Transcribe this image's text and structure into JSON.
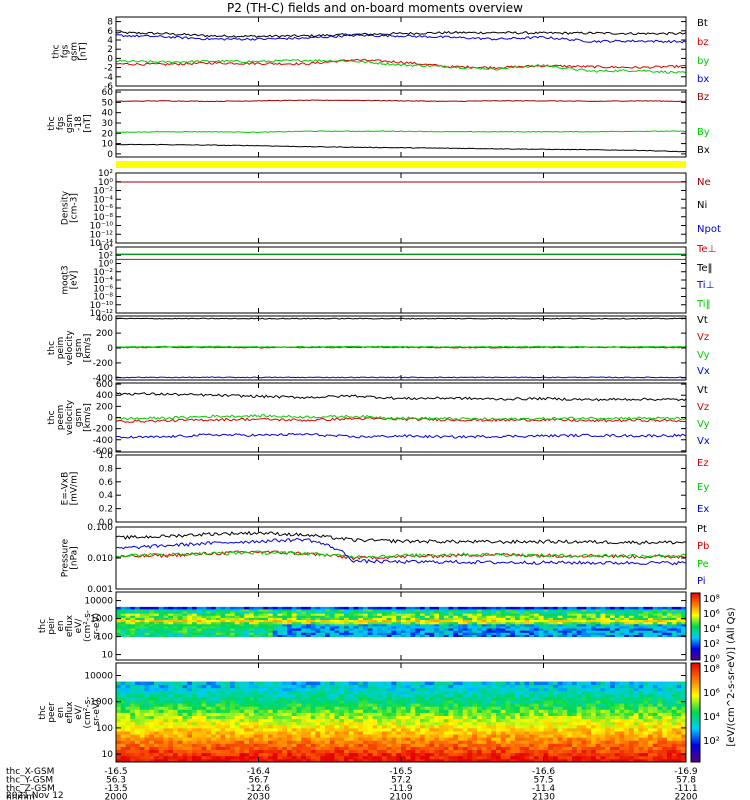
{
  "title": "P2 (TH-C) fields and on-board moments overview",
  "colors": {
    "black": "#000000",
    "red": "#dd0000",
    "green": "#00cc00",
    "blue": "#0000dd",
    "maroon": "#990000",
    "yellow": "#ffff00"
  },
  "chart_data": [
    {
      "type": "line",
      "name": "panel-fgs-gsm",
      "ylabel": [
        "thc",
        "fgs",
        "gsm",
        "[nT]"
      ],
      "ylim": [
        -6,
        9
      ],
      "yticks": [
        "8",
        "6",
        "4",
        "2",
        "0",
        "-2",
        "-4",
        "-6"
      ],
      "ytick_values": [
        8,
        6,
        4,
        2,
        0,
        -2,
        -4,
        -6
      ],
      "series": [
        {
          "name": "Bt",
          "color": "#000000",
          "values": [
            5.6,
            5.4,
            4.9,
            4.8,
            4.9,
            5.2,
            5.4,
            5.6,
            5.6,
            5.5,
            5.5,
            5.4,
            5.4
          ]
        },
        {
          "name": "bz",
          "color": "#dd0000",
          "values": [
            -1.2,
            -1.3,
            -1.0,
            -1.1,
            -1.2,
            -0.3,
            -0.8,
            -1.8,
            -2.0,
            -1.6,
            -1.8,
            -2.0,
            -1.7
          ]
        },
        {
          "name": "by",
          "color": "#00cc00",
          "values": [
            -0.6,
            -0.8,
            -0.6,
            -0.7,
            -0.4,
            -0.6,
            -1.4,
            -1.8,
            -2.3,
            -1.5,
            -2.8,
            -2.6,
            -3.2
          ]
        },
        {
          "name": "bx",
          "color": "#0000dd",
          "values": [
            5.0,
            4.7,
            4.2,
            4.2,
            4.4,
            5.0,
            4.9,
            4.6,
            4.2,
            4.6,
            3.7,
            3.8,
            3.6
          ]
        }
      ]
    },
    {
      "type": "line",
      "name": "panel-fgs-gsm-offset",
      "ylabel": [
        "thc",
        "fgs",
        "gsm",
        "-18",
        "[nT]"
      ],
      "ylim": [
        -3,
        62
      ],
      "yticks": [
        "60",
        "50",
        "40",
        "30",
        "20",
        "10",
        "0"
      ],
      "ytick_values": [
        60,
        50,
        40,
        30,
        20,
        10,
        0
      ],
      "series": [
        {
          "name": "Bz",
          "color": "#990000",
          "values": [
            51,
            51.5,
            51,
            51.5,
            52,
            52,
            51.5,
            51,
            51.5,
            51.5,
            51,
            51.5,
            51
          ]
        },
        {
          "name": "By",
          "color": "#00cc00",
          "values": [
            21,
            21.5,
            21.5,
            21,
            22,
            22,
            22,
            21.5,
            21.5,
            21.5,
            21.5,
            22,
            22
          ]
        },
        {
          "name": "Bx",
          "color": "#000000",
          "values": [
            9,
            9,
            8.5,
            8,
            7,
            6.5,
            6,
            5.5,
            5,
            4.5,
            4,
            3.5,
            2
          ]
        }
      ]
    },
    {
      "type": "line",
      "name": "panel-density",
      "ylabel": [
        "Density",
        "[cm-3]"
      ],
      "yscale": "log",
      "ylim": [
        1e-14,
        100
      ],
      "yticks": [
        "10²",
        "10⁰",
        "10⁻²",
        "10⁻⁴",
        "10⁻⁶",
        "10⁻⁸",
        "10⁻¹⁰",
        "10⁻¹²",
        "10⁻¹⁴"
      ],
      "ytick_values": [
        100,
        1,
        0.01,
        0.0001,
        1e-06,
        1e-08,
        1e-10,
        1e-12,
        1e-14
      ],
      "series": [
        {
          "name": "Ne",
          "color": "#990000",
          "values": [
            0.9,
            0.9
          ]
        },
        {
          "name": "Ni",
          "color": "#000000",
          "values": []
        },
        {
          "name": "Npot",
          "color": "#0000dd",
          "values": []
        }
      ]
    },
    {
      "type": "line",
      "name": "panel-temperature",
      "ylabel": [
        "moqt3",
        "[eV]"
      ],
      "yscale": "log",
      "ylim": [
        1e-12,
        10000
      ],
      "yticks": [
        "10⁴",
        "10²",
        "10⁰",
        "10⁻²",
        "10⁻⁴",
        "10⁻⁶",
        "10⁻⁸",
        "10⁻¹⁰",
        "10⁻¹²"
      ],
      "ytick_values": [
        10000,
        100,
        1,
        0.01,
        0.0001,
        1e-06,
        1e-08,
        1e-10,
        1e-12
      ],
      "series": [
        {
          "name": "Te⊥",
          "color": "#dd0000",
          "values": [
            10,
            10
          ]
        },
        {
          "name": "Te‖",
          "color": "#000000",
          "values": [
            150,
            150
          ]
        },
        {
          "name": "Ti⊥",
          "color": "#0000dd",
          "values": [
            180,
            180
          ]
        },
        {
          "name": "Ti‖",
          "color": "#00cc00",
          "values": [
            170,
            170
          ]
        }
      ]
    },
    {
      "type": "line",
      "name": "panel-peim-velocity",
      "ylabel": [
        "thc",
        "peim",
        "velocity",
        "gsm",
        "[km/s]"
      ],
      "ylim": [
        -430,
        430
      ],
      "yticks": [
        "400",
        "200",
        "0",
        "-200",
        "-400"
      ],
      "ytick_values": [
        400,
        200,
        0,
        -200,
        -400
      ],
      "series": [
        {
          "name": "Vt",
          "color": "#000000",
          "values": [
            395,
            395,
            395,
            395,
            395,
            395,
            395,
            395,
            395,
            395,
            395,
            395,
            395
          ]
        },
        {
          "name": "Vz",
          "color": "#dd0000",
          "values": [
            5,
            10,
            8,
            5,
            8,
            10,
            8,
            6,
            5,
            8,
            10,
            6,
            5
          ]
        },
        {
          "name": "Vy",
          "color": "#00cc00",
          "values": [
            15,
            18,
            20,
            15,
            16,
            20,
            18,
            15,
            16,
            18,
            15,
            16,
            15
          ]
        },
        {
          "name": "Vx",
          "color": "#0000dd",
          "values": [
            -395,
            -395,
            -395,
            -395,
            -395,
            -395,
            -395,
            -395,
            -395,
            -395,
            -395,
            -395,
            -395
          ]
        }
      ]
    },
    {
      "type": "line",
      "name": "panel-peem-velocity",
      "ylabel": [
        "thc",
        "peem",
        "velocity",
        "gsm",
        "[km/s]"
      ],
      "ylim": [
        -620,
        620
      ],
      "yticks": [
        "600",
        "400",
        "200",
        "0",
        "-200",
        "-400",
        "-600"
      ],
      "ytick_values": [
        600,
        400,
        200,
        0,
        -200,
        -400,
        -600
      ],
      "series": [
        {
          "name": "Vt",
          "color": "#000000",
          "values": [
            430,
            420,
            400,
            380,
            360,
            390,
            340,
            350,
            330,
            340,
            320,
            330,
            320
          ]
        },
        {
          "name": "Vz",
          "color": "#dd0000",
          "values": [
            -70,
            -60,
            -40,
            -30,
            -50,
            -20,
            -30,
            -40,
            -50,
            -40,
            -60,
            -50,
            -60
          ]
        },
        {
          "name": "Vy",
          "color": "#00cc00",
          "values": [
            -20,
            -10,
            20,
            30,
            10,
            20,
            -10,
            -20,
            -30,
            -20,
            -10,
            -10,
            -20
          ]
        },
        {
          "name": "Vx",
          "color": "#0000dd",
          "values": [
            -360,
            -350,
            -310,
            -320,
            -300,
            -350,
            -330,
            -350,
            -340,
            -330,
            -320,
            -330,
            -320
          ]
        }
      ]
    },
    {
      "type": "line",
      "name": "panel-efield",
      "ylabel": [
        "E=-VxB",
        "[mV/m]"
      ],
      "ylim": [
        0,
        1
      ],
      "yticks": [
        "1.0",
        "0.8",
        "0.6",
        "0.4",
        "0.2",
        "0.0"
      ],
      "ytick_values": [
        1.0,
        0.8,
        0.6,
        0.4,
        0.2,
        0.0
      ],
      "series": [
        {
          "name": "Ez",
          "color": "#dd0000",
          "values": []
        },
        {
          "name": "Ey",
          "color": "#00cc00",
          "values": []
        },
        {
          "name": "Ex",
          "color": "#0000dd",
          "values": []
        }
      ]
    },
    {
      "type": "line",
      "name": "panel-pressure",
      "ylabel": [
        "Pressure",
        "[nPa]"
      ],
      "yscale": "log",
      "ylim": [
        0.001,
        0.1
      ],
      "yticks": [
        "0.100",
        "0.010",
        "0.001"
      ],
      "ytick_values": [
        0.1,
        0.01,
        0.001
      ],
      "series": [
        {
          "name": "Pt",
          "color": "#000000",
          "values": [
            0.045,
            0.05,
            0.06,
            0.065,
            0.055,
            0.038,
            0.035,
            0.034,
            0.033,
            0.034,
            0.033,
            0.032,
            0.032
          ]
        },
        {
          "name": "Pb",
          "color": "#dd0000",
          "values": [
            0.011,
            0.012,
            0.014,
            0.016,
            0.014,
            0.01,
            0.011,
            0.012,
            0.013,
            0.012,
            0.012,
            0.011,
            0.011
          ]
        },
        {
          "name": "Pe",
          "color": "#00cc00",
          "values": [
            0.012,
            0.013,
            0.014,
            0.015,
            0.014,
            0.011,
            0.012,
            0.013,
            0.013,
            0.012,
            0.012,
            0.012,
            0.012
          ]
        },
        {
          "name": "Pi",
          "color": "#0000dd",
          "values": [
            0.02,
            0.025,
            0.03,
            0.035,
            0.04,
            0.008,
            0.0075,
            0.0075,
            0.0072,
            0.0072,
            0.007,
            0.007,
            0.007
          ]
        }
      ]
    },
    {
      "type": "heatmap",
      "name": "panel-peir-eflux",
      "ylabel": [
        "thc",
        "peir",
        "en",
        "eflux",
        "eV/",
        "(cm²-s-",
        "sr-eV)"
      ],
      "yscale": "log",
      "ylim": [
        5,
        30000
      ],
      "yticks": [
        "10000",
        "1000",
        "100",
        "10"
      ],
      "ytick_values": [
        10000,
        1000,
        100,
        10
      ]
    },
    {
      "type": "heatmap",
      "name": "panel-peer-eflux",
      "ylabel": [
        "thc",
        "peer",
        "en",
        "eflux",
        "eV/",
        "(cm²-s-",
        "sr-eV)"
      ],
      "yscale": "log",
      "ylim": [
        5,
        30000
      ],
      "yticks": [
        "10000",
        "1000",
        "100",
        "10"
      ],
      "ytick_values": [
        10000,
        1000,
        100,
        10
      ]
    }
  ],
  "colorbar": {
    "label": "[eV/(cm^2-s-sr-eV)] (All Qs)",
    "ticks_upper": [
      "10⁸",
      "10⁶",
      "10⁴",
      "10²",
      "10⁰"
    ],
    "ticks_lower": [
      "10⁸",
      "10⁶",
      "10⁴",
      "10²"
    ]
  },
  "xaxis": {
    "rows": [
      {
        "label": "thc_X-GSM",
        "values": [
          "-16.5",
          "-16.4",
          "-16.5",
          "-16.6",
          "-16.9"
        ]
      },
      {
        "label": "thc_Y-GSM",
        "values": [
          "56.3",
          "56.7",
          "57.2",
          "57.5",
          "57.8"
        ]
      },
      {
        "label": "thc_Z-GSM",
        "values": [
          "-13.5",
          "-12.6",
          "-11.9",
          "-11.4",
          "-11.1"
        ]
      },
      {
        "label": "hhmm",
        "values": [
          "2000",
          "2030",
          "2100",
          "2130",
          "2200"
        ]
      }
    ],
    "date": "2021 Nov 12"
  }
}
